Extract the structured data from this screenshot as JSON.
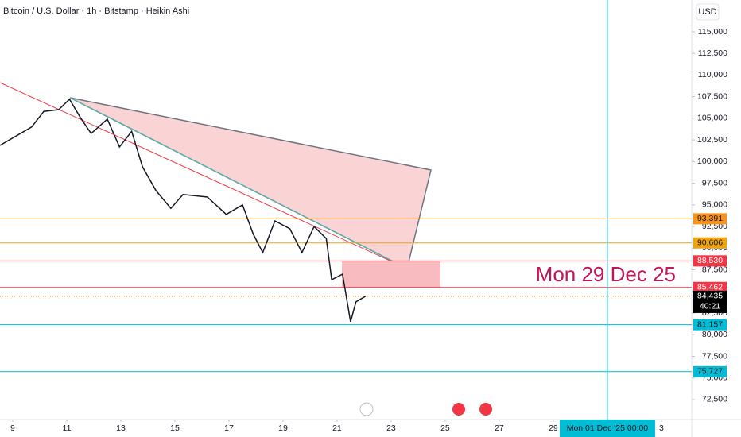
{
  "chart_data": {
    "type": "line",
    "title": "Bitcoin / U.S. Dollar · 1h · Bitstamp · Heikin Ashi",
    "currency": "USD",
    "annotation": "Mon 29 Dec 25",
    "crosshair": {
      "value": 31,
      "label": "Mon 01 Dec '25  00:00"
    },
    "countdown": "40:21",
    "series": [
      {
        "name": "BTCUSD",
        "color": "#131722",
        "x": [
          8.53,
          9.7,
          10.15,
          10.7,
          11.1,
          11.5,
          11.9,
          12.5,
          12.95,
          13.4,
          13.8,
          14.3,
          14.85,
          15.3,
          16.2,
          16.9,
          17.5,
          17.9,
          18.25,
          18.7,
          19.25,
          19.7,
          20.15,
          20.6,
          20.8,
          21.2,
          21.5,
          21.7,
          22.05
        ],
        "values": [
          101870,
          104000,
          105800,
          106000,
          107200,
          105100,
          103250,
          104900,
          101700,
          103500,
          99400,
          96650,
          94600,
          96200,
          95900,
          93900,
          95000,
          91600,
          89500,
          93150,
          92250,
          89500,
          92500,
          91100,
          86350,
          87000,
          81500,
          83800,
          84435
        ]
      }
    ],
    "levels": {
      "values": [
        93391,
        90606,
        88530,
        85462,
        84435,
        81157,
        75727
      ],
      "value_labels": [
        "93,391",
        "90,606",
        "88,530",
        "85,462",
        "84,435",
        "81,157",
        "75,727"
      ],
      "colors": [
        "#f7931a",
        "#f0a30a",
        "#f23645",
        "#f23645",
        "#000000",
        "#00bcd4",
        "#00bcd4"
      ]
    },
    "xlim": [
      8.53,
      34.12
    ],
    "ylim": [
      70200,
      118670
    ],
    "xticks": [
      9,
      11,
      13,
      15,
      17,
      19,
      21,
      23,
      25,
      27,
      29,
      {
        "value": 33,
        "label": "3"
      }
    ],
    "yticks": [
      {
        "value": 72500,
        "label": "72,500"
      },
      {
        "value": 75000,
        "label": "75,000"
      },
      {
        "value": 77500,
        "label": "77,500"
      },
      {
        "value": 80000,
        "label": "80,000"
      },
      {
        "value": 82500,
        "label": "82,500"
      },
      {
        "value": 85000,
        "label": "85,000"
      },
      {
        "value": 87500,
        "label": "87,500"
      },
      {
        "value": 90000,
        "label": "90,000"
      },
      {
        "value": 92500,
        "label": "92,500"
      },
      {
        "value": 95000,
        "label": "95,000"
      },
      {
        "value": 97500,
        "label": "97,500"
      },
      {
        "value": 100000,
        "label": "100,000"
      },
      {
        "value": 102500,
        "label": "102,500"
      },
      {
        "value": 105000,
        "label": "105,000"
      },
      {
        "value": 107500,
        "label": "107,500"
      },
      {
        "value": 110000,
        "label": "110,000"
      },
      {
        "value": 112500,
        "label": "112,500"
      },
      {
        "value": 115000,
        "label": "115,000"
      }
    ],
    "grid": false
  }
}
